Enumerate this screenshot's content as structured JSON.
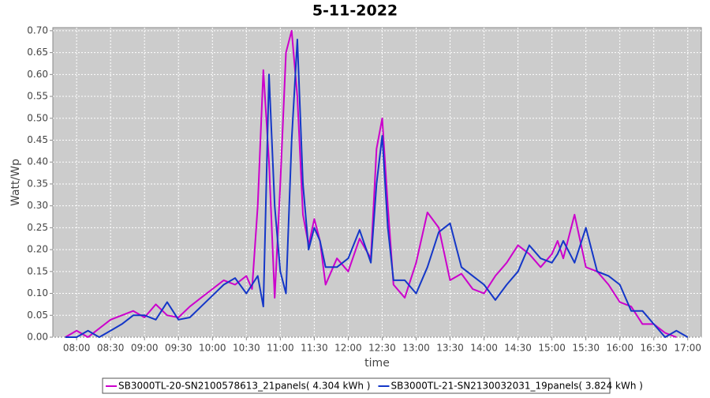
{
  "chart_data": {
    "type": "line",
    "title": "5-11-2022",
    "x_label": "time",
    "y_label": "Watt/Wp",
    "x": [
      "07:50",
      "08:00",
      "08:10",
      "08:20",
      "08:30",
      "08:40",
      "08:50",
      "09:00",
      "09:10",
      "09:20",
      "09:30",
      "09:40",
      "09:50",
      "10:00",
      "10:10",
      "10:20",
      "10:30",
      "10:35",
      "10:40",
      "10:45",
      "10:50",
      "10:55",
      "11:00",
      "11:05",
      "11:10",
      "11:15",
      "11:20",
      "11:25",
      "11:30",
      "11:35",
      "11:40",
      "11:50",
      "12:00",
      "12:10",
      "12:20",
      "12:25",
      "12:30",
      "12:35",
      "12:40",
      "12:50",
      "13:00",
      "13:10",
      "13:20",
      "13:30",
      "13:40",
      "13:50",
      "14:00",
      "14:10",
      "14:20",
      "14:30",
      "14:40",
      "14:50",
      "15:00",
      "15:05",
      "15:10",
      "15:20",
      "15:30",
      "15:40",
      "15:50",
      "16:00",
      "16:10",
      "16:20",
      "16:30",
      "16:40",
      "16:50",
      "17:00"
    ],
    "series": [
      {
        "name": "SB3000TL-20-SN2100578613_21panels( 4.304 kWh )",
        "color": "#cc00cc",
        "values": [
          0,
          0.015,
          0,
          0.02,
          0.04,
          0.05,
          0.06,
          0.045,
          0.075,
          0.05,
          0.045,
          0.07,
          0.09,
          0.11,
          0.13,
          0.12,
          0.14,
          0.11,
          0.3,
          0.61,
          0.4,
          0.09,
          0.35,
          0.65,
          0.7,
          0.55,
          0.28,
          0.21,
          0.27,
          0.22,
          0.12,
          0.18,
          0.15,
          0.225,
          0.18,
          0.43,
          0.5,
          0.3,
          0.12,
          0.09,
          0.17,
          0.285,
          0.25,
          0.13,
          0.145,
          0.11,
          0.1,
          0.14,
          0.17,
          0.21,
          0.19,
          0.16,
          0.19,
          0.22,
          0.18,
          0.28,
          0.16,
          0.15,
          0.12,
          0.08,
          0.07,
          0.03,
          0.03,
          0.01,
          0,
          null
        ]
      },
      {
        "name": "SB3000TL-21-SN2130032031_19panels( 3.824 kWh )",
        "color": "#1437c8",
        "values": [
          0,
          0,
          0.015,
          0,
          0.015,
          0.03,
          0.05,
          0.05,
          0.04,
          0.08,
          0.04,
          0.045,
          0.07,
          0.095,
          0.12,
          0.135,
          0.1,
          0.12,
          0.14,
          0.07,
          0.6,
          0.3,
          0.15,
          0.1,
          0.45,
          0.68,
          0.35,
          0.2,
          0.25,
          0.22,
          0.16,
          0.16,
          0.18,
          0.245,
          0.17,
          0.35,
          0.46,
          0.25,
          0.13,
          0.13,
          0.1,
          0.16,
          0.24,
          0.26,
          0.16,
          0.14,
          0.12,
          0.085,
          0.12,
          0.15,
          0.21,
          0.18,
          0.17,
          0.19,
          0.22,
          0.17,
          0.25,
          0.15,
          0.14,
          0.12,
          0.06,
          0.06,
          0.03,
          0,
          0.015,
          0
        ]
      }
    ],
    "xlim": [
      "07:39",
      "17:12"
    ],
    "xticks": [
      "08:00",
      "08:30",
      "09:00",
      "09:30",
      "10:00",
      "10:30",
      "11:00",
      "11:30",
      "12:00",
      "12:30",
      "13:00",
      "13:30",
      "14:00",
      "14:30",
      "15:00",
      "15:30",
      "16:00",
      "16:30",
      "17:00"
    ],
    "ylim": [
      0,
      0.707
    ],
    "yticks": [
      {
        "value": 0,
        "label": "0.00"
      },
      {
        "value": 0.05,
        "label": "0.05"
      },
      {
        "value": 0.1,
        "label": "0.10"
      },
      {
        "value": 0.15,
        "label": "0.15"
      },
      {
        "value": 0.2,
        "label": "0.20"
      },
      {
        "value": 0.25,
        "label": "0.25"
      },
      {
        "value": 0.3,
        "label": "0.30"
      },
      {
        "value": 0.35,
        "label": "0.35"
      },
      {
        "value": 0.4,
        "label": "0.40"
      },
      {
        "value": 0.45,
        "label": "0.45"
      },
      {
        "value": 0.5,
        "label": "0.50"
      },
      {
        "value": 0.55,
        "label": "0.55"
      },
      {
        "value": 0.6,
        "label": "0.60"
      },
      {
        "value": 0.65,
        "label": "0.65"
      },
      {
        "value": 0.7,
        "label": "0.70"
      }
    ],
    "grid": true,
    "legend": "bottom"
  }
}
